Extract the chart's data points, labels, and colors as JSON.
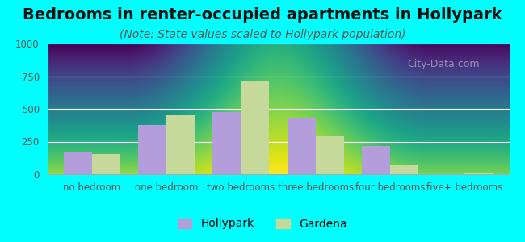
{
  "title": "Bedrooms in renter-occupied apartments in Hollypark",
  "subtitle": "(Note: State values scaled to Hollypark population)",
  "categories": [
    "no bedroom",
    "one bedroom",
    "two bedrooms",
    "three bedrooms",
    "four bedrooms",
    "five+ bedrooms"
  ],
  "hollypark_values": [
    175,
    375,
    475,
    430,
    215,
    0
  ],
  "gardena_values": [
    155,
    450,
    715,
    290,
    75,
    10
  ],
  "hollypark_color": "#b39ddb",
  "gardena_color": "#c5d99a",
  "ylim": [
    0,
    1000
  ],
  "yticks": [
    0,
    250,
    500,
    750,
    1000
  ],
  "background_color": "#00ffff",
  "bar_width": 0.38,
  "title_fontsize": 14,
  "subtitle_fontsize": 10,
  "tick_fontsize": 8.5,
  "legend_fontsize": 10
}
